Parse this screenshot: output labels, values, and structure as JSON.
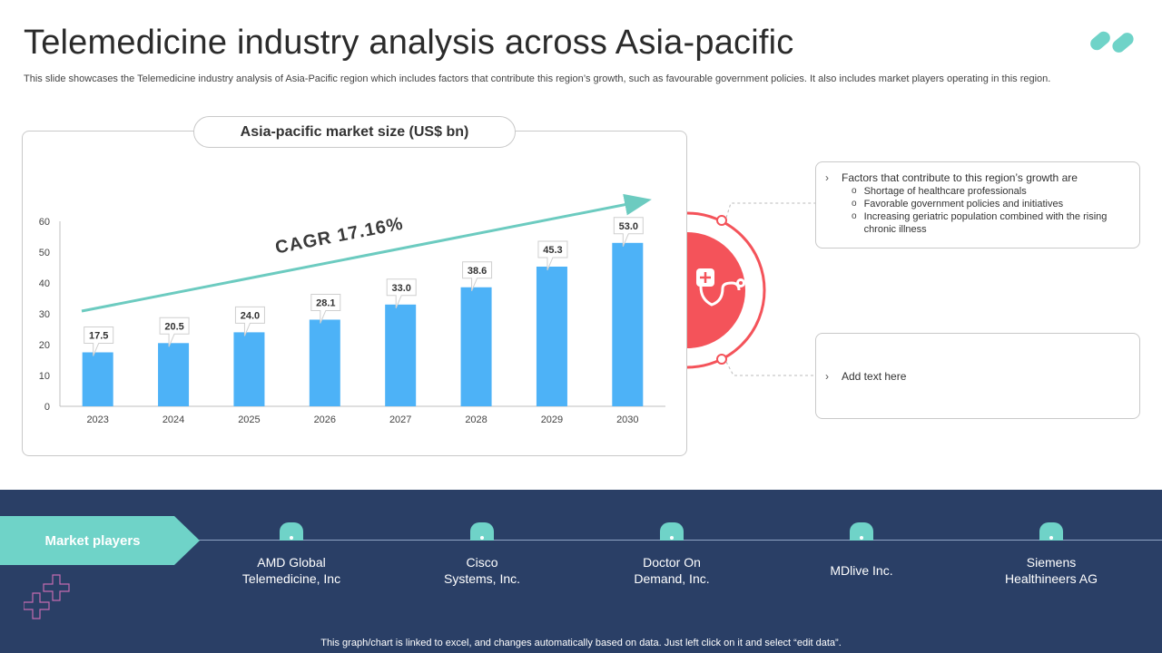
{
  "header": {
    "title": "Telemedicine industry analysis across Asia-pacific",
    "subtitle": "This slide showcases the Telemedicine industry analysis of Asia-Pacific region which includes factors that contribute this region’s growth, such as favourable government policies. It also includes market players operating in this region."
  },
  "chart_data": {
    "type": "bar",
    "title": "Asia-pacific market size (US$ bn)",
    "categories": [
      "2023",
      "2024",
      "2025",
      "2026",
      "2027",
      "2028",
      "2029",
      "2030"
    ],
    "values": [
      17.5,
      20.5,
      24.0,
      28.1,
      33.0,
      38.6,
      45.3,
      53.0
    ],
    "data_labels": [
      "17.5",
      "20.5",
      "24.0",
      "28.1",
      "33.0",
      "38.6",
      "45.3",
      "53.0"
    ],
    "ylim": [
      0,
      60
    ],
    "yticks": [
      "0",
      "10",
      "20",
      "30",
      "40",
      "50",
      "60"
    ],
    "annotation": "CAGR 17.16%",
    "bar_color": "#4db2f7",
    "trend_color": "#6ccbc0"
  },
  "growth_card": {
    "heading": "Factors that contribute to this region’s growth are",
    "items": [
      "Shortage of healthcare professionals",
      "Favorable government policies and initiatives",
      "Increasing geriatric population combined with the rising chronic illness"
    ]
  },
  "text_card": {
    "placeholder": "Add text here"
  },
  "center_icon": "stethoscope-icon",
  "market_players": {
    "label": "Market players",
    "players": [
      "AMD Global\nTelemedicine, Inc",
      "Cisco\nSystems, Inc.",
      "Doctor On\nDemand, Inc.",
      "MDlive Inc.",
      "Siemens\nHealthineers AG"
    ]
  },
  "footer": {
    "note": "This graph/chart is linked to excel,  and changes automatically based on data. Just left click on it and select “edit data”."
  },
  "colors": {
    "accent": "#6fd3c8",
    "red": "#f4535a",
    "band": "#2a3f66"
  }
}
